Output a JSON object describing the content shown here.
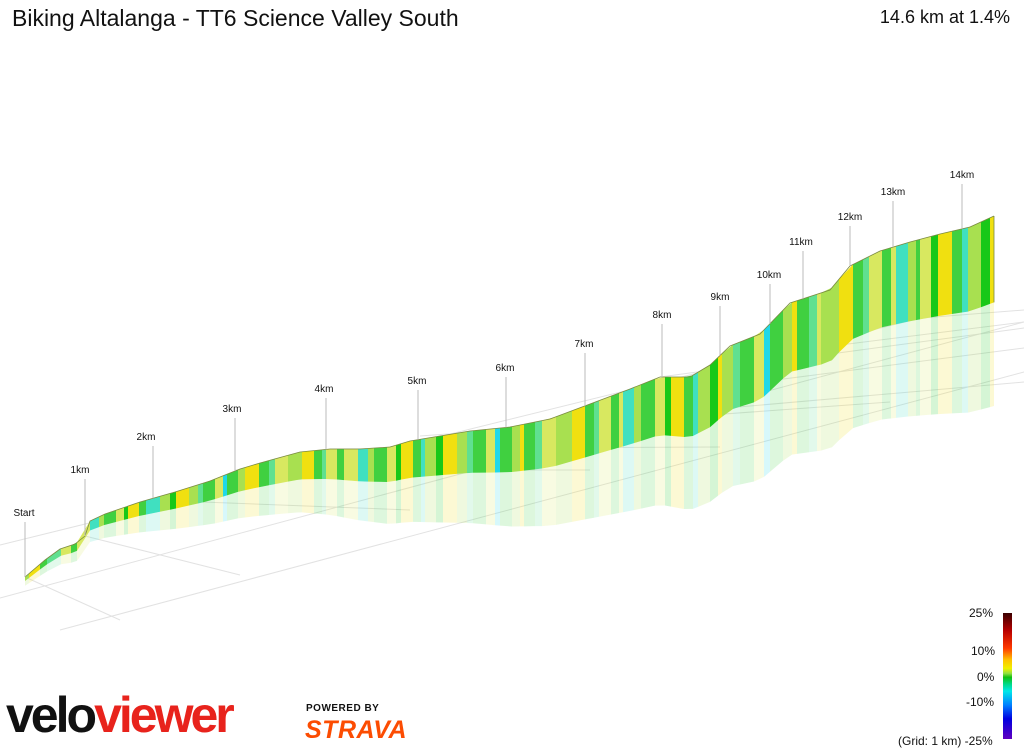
{
  "header": {
    "title": "Biking Altalanga - TT6 Science Valley South",
    "summary": "14.6 km at 1.4%"
  },
  "legend": {
    "labels": [
      "25%",
      "10%",
      "0%",
      "-10%"
    ],
    "grid_note": "(Grid: 1 km) -25%"
  },
  "brand": {
    "part1": "velo",
    "part2": "viewer",
    "powered_by": "POWERED BY",
    "strava": "STRAVA"
  },
  "chart_data": {
    "type": "area",
    "distance_km": 14.6,
    "avg_grade_percent": 1.4,
    "km_labels": [
      "Start",
      "1km",
      "2km",
      "3km",
      "4km",
      "5km",
      "6km",
      "7km",
      "8km",
      "9km",
      "10km",
      "11km",
      "12km",
      "13km",
      "14km"
    ],
    "gradient_scale_percent": [
      25,
      10,
      0,
      -10,
      -25
    ],
    "colors": {
      "steep_up": "#b80000",
      "moderate_up": "#f0f000",
      "flat": "#10c010",
      "down": "#00e8e8",
      "steep_down": "#0000e0"
    }
  }
}
